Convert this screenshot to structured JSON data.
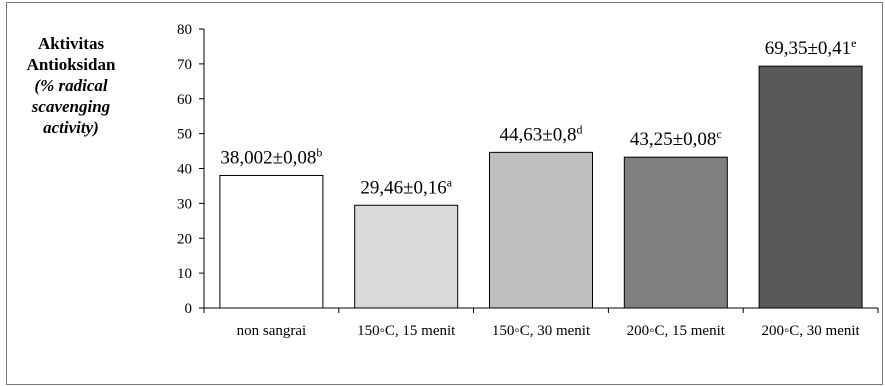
{
  "chart_data": {
    "type": "bar",
    "ylabel_lines": [
      "Aktivitas",
      "Antioksidan",
      "(% radical",
      "scavenging",
      "activity)"
    ],
    "categories": [
      "non sangrai",
      "150◦C, 15 menit",
      "150◦C, 30 menit",
      "200◦C, 15 menit",
      "200◦C, 30 menit"
    ],
    "values": [
      38.002,
      29.46,
      44.63,
      43.25,
      69.35
    ],
    "errors": [
      0.08,
      0.16,
      0.8,
      0.08,
      0.41
    ],
    "data_labels": [
      {
        "text": "38,002±0,08",
        "letter": "b"
      },
      {
        "text": "29,46±0,16",
        "letter": "a"
      },
      {
        "text": "44,63±0,8",
        "letter": "d"
      },
      {
        "text": "43,25±0,08",
        "letter": "c"
      },
      {
        "text": "69,35±0,41",
        "letter": "e"
      }
    ],
    "bar_colors": [
      "#ffffff",
      "#d9d9d9",
      "#bfbfbf",
      "#7f7f7f",
      "#595959"
    ],
    "yticks": [
      "0",
      "10",
      "20",
      "30",
      "40",
      "50",
      "60",
      "70",
      "80"
    ],
    "ylim": [
      0,
      80
    ],
    "grid": false,
    "legend": "none"
  }
}
